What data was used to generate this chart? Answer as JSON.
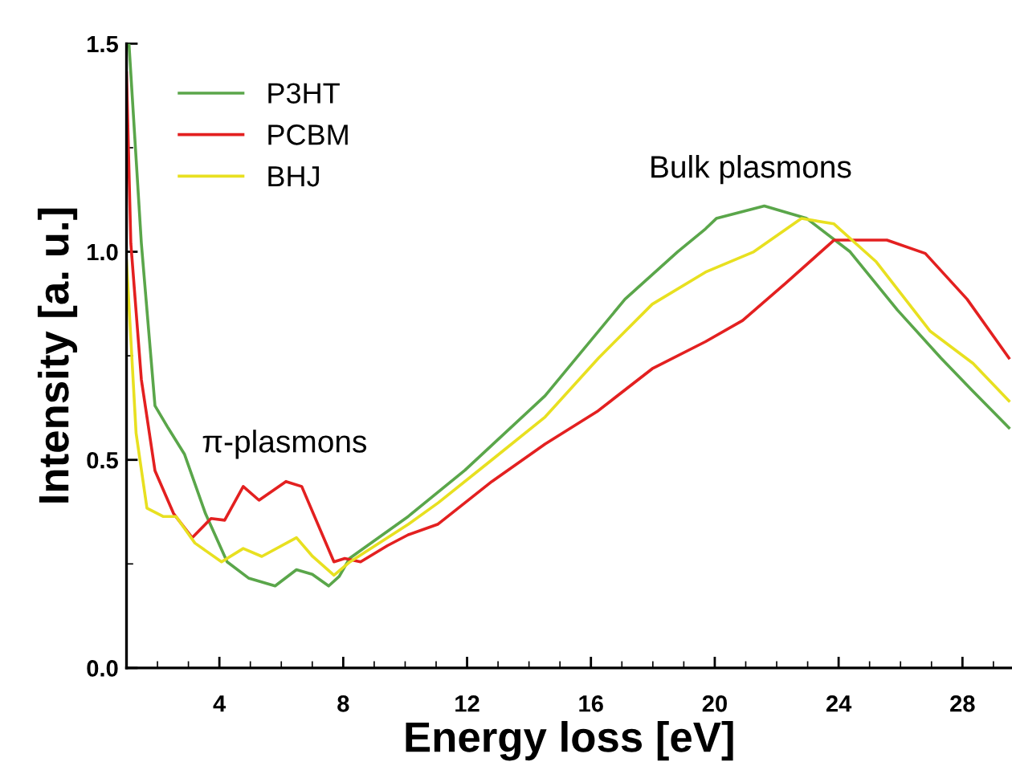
{
  "chart_data": {
    "type": "line",
    "xlabel": "Energy loss [eV]",
    "ylabel": "Intensity [a. u.]",
    "xlim": [
      1,
      29.6
    ],
    "xticks": [
      4,
      8,
      12,
      16,
      20,
      24,
      28
    ],
    "ylim": [
      0,
      1.5
    ],
    "yticks": [
      {
        "value": 0,
        "label": "0.0"
      },
      {
        "value": 0.5,
        "label": "0.5"
      },
      {
        "value": 1,
        "label": "1.0"
      },
      {
        "value": 1.5,
        "label": "1.5"
      }
    ],
    "legend": "top left",
    "grid": false,
    "marker": "none",
    "line_style": "solid",
    "annotations": [
      "π-plasmons",
      "Bulk plasmons"
    ],
    "series": [
      {
        "name": "P3HT",
        "color": "#5aa64a",
        "x": [
          1.08,
          1.48,
          1.92,
          2.35,
          2.87,
          3.55,
          4.25,
          4.94,
          5.8,
          6.49,
          7.0,
          7.53,
          7.87,
          8.2,
          10.1,
          11.93,
          14.52,
          17.1,
          18.8,
          19.7,
          20.05,
          21.6,
          22.97,
          24.37,
          25.9,
          27.3,
          28.3,
          29.5
        ],
        "values": [
          1.5,
          1.02,
          0.63,
          0.576,
          0.514,
          0.371,
          0.255,
          0.216,
          0.197,
          0.236,
          0.225,
          0.197,
          0.22,
          0.263,
          0.364,
          0.475,
          0.654,
          0.886,
          1.0,
          1.055,
          1.08,
          1.11,
          1.08,
          1.0,
          0.86,
          0.745,
          0.668,
          0.577
        ]
      },
      {
        "name": "PCBM",
        "color": "#e32020",
        "x": [
          1.0,
          1.14,
          1.48,
          1.92,
          2.52,
          3.12,
          3.73,
          4.17,
          4.77,
          5.28,
          6.15,
          6.66,
          7.7,
          8.05,
          8.56,
          9.43,
          10.1,
          11.05,
          12.8,
          14.52,
          16.2,
          17.98,
          19.7,
          20.9,
          22.3,
          23.85,
          25.56,
          26.8,
          28.15,
          29.5
        ],
        "values": [
          1.43,
          1.02,
          0.693,
          0.474,
          0.371,
          0.313,
          0.359,
          0.355,
          0.436,
          0.403,
          0.448,
          0.436,
          0.255,
          0.263,
          0.255,
          0.294,
          0.32,
          0.345,
          0.448,
          0.538,
          0.616,
          0.719,
          0.784,
          0.835,
          0.925,
          1.028,
          1.028,
          0.996,
          0.886,
          0.745
        ]
      },
      {
        "name": "BHJ",
        "color": "#e8e020",
        "x": [
          1.0,
          1.31,
          1.66,
          2.18,
          2.6,
          3.21,
          4.07,
          4.77,
          5.37,
          6.49,
          7.01,
          7.7,
          8.22,
          10.1,
          11.07,
          12.8,
          14.52,
          16.25,
          17.98,
          19.7,
          21.26,
          22.8,
          23.85,
          25.2,
          26.96,
          28.34,
          29.5
        ],
        "values": [
          0.978,
          0.564,
          0.384,
          0.364,
          0.364,
          0.3,
          0.255,
          0.287,
          0.268,
          0.313,
          0.268,
          0.223,
          0.255,
          0.345,
          0.397,
          0.5,
          0.603,
          0.745,
          0.874,
          0.951,
          1.0,
          1.08,
          1.067,
          0.977,
          0.809,
          0.732,
          0.642
        ]
      }
    ]
  }
}
